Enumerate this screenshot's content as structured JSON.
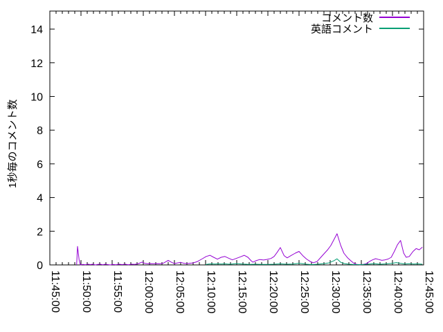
{
  "chart_data": {
    "type": "line",
    "title": "",
    "xlabel": "",
    "ylabel": "1秒毎のコメント数",
    "ylim": [
      0,
      15.07
    ],
    "yticks": [
      0,
      2,
      4,
      6,
      8,
      10,
      12,
      14
    ],
    "x_range_minutes": [
      0,
      60
    ],
    "x_major_tick_minutes": 5,
    "x_minor_tick_minutes": 1,
    "xtick_labels": [
      "11:45:00",
      "11:50:00",
      "11:55:00",
      "12:00:00",
      "12:05:00",
      "12:10:00",
      "12:15:00",
      "12:20:00",
      "12:25:00",
      "12:30:00",
      "12:35:00",
      "12:40:00",
      "12:45:00"
    ],
    "grid": false,
    "legend_position": "top-right-inside",
    "axis_color": "#000000",
    "background_color": "#ffffff",
    "series": [
      {
        "name": "コメント数",
        "color": "#9400d3",
        "points": [
          [
            4.3,
            0
          ],
          [
            4.45,
            1.1
          ],
          [
            4.7,
            0.3
          ],
          [
            4.9,
            0
          ],
          [
            5.3,
            0.03
          ],
          [
            5.7,
            0.01
          ],
          [
            6.1,
            0.04
          ],
          [
            6.5,
            0.02
          ],
          [
            6.9,
            0.04
          ],
          [
            7.3,
            0
          ],
          [
            7.7,
            0.03
          ],
          [
            8.1,
            0.04
          ],
          [
            8.5,
            0.01
          ],
          [
            8.9,
            0.04
          ],
          [
            9.3,
            0.02
          ],
          [
            9.7,
            0
          ],
          [
            10.1,
            0.03
          ],
          [
            10.6,
            0.01
          ],
          [
            11.1,
            0.04
          ],
          [
            11.6,
            0.02
          ],
          [
            12.1,
            0.04
          ],
          [
            12.6,
            0.01
          ],
          [
            13.1,
            0.04
          ],
          [
            13.6,
            0.03
          ],
          [
            14.1,
            0.06
          ],
          [
            14.5,
            0.12
          ],
          [
            14.8,
            0.17
          ],
          [
            15.2,
            0.1
          ],
          [
            15.7,
            0.07
          ],
          [
            16.2,
            0.08
          ],
          [
            16.7,
            0.07
          ],
          [
            17.2,
            0.08
          ],
          [
            17.7,
            0.07
          ],
          [
            18.2,
            0.1
          ],
          [
            18.6,
            0.18
          ],
          [
            19,
            0.27
          ],
          [
            19.5,
            0.16
          ],
          [
            20,
            0.08
          ],
          [
            20.5,
            0.12
          ],
          [
            21,
            0.15
          ],
          [
            21.5,
            0.1
          ],
          [
            22,
            0.08
          ],
          [
            22.5,
            0.1
          ],
          [
            23,
            0.12
          ],
          [
            23.7,
            0.2
          ],
          [
            24.4,
            0.35
          ],
          [
            25.1,
            0.5
          ],
          [
            25.7,
            0.57
          ],
          [
            26.3,
            0.45
          ],
          [
            26.9,
            0.34
          ],
          [
            27.5,
            0.45
          ],
          [
            28.1,
            0.5
          ],
          [
            28.7,
            0.4
          ],
          [
            29.3,
            0.3
          ],
          [
            29.9,
            0.38
          ],
          [
            30.6,
            0.48
          ],
          [
            31.2,
            0.57
          ],
          [
            31.8,
            0.45
          ],
          [
            32.3,
            0.25
          ],
          [
            32.6,
            0.16
          ],
          [
            33.1,
            0.25
          ],
          [
            33.7,
            0.32
          ],
          [
            34.3,
            0.29
          ],
          [
            34.9,
            0.33
          ],
          [
            35.5,
            0.38
          ],
          [
            36,
            0.5
          ],
          [
            36.5,
            0.75
          ],
          [
            37,
            1.03
          ],
          [
            37.6,
            0.55
          ],
          [
            38.1,
            0.42
          ],
          [
            38.7,
            0.55
          ],
          [
            39.4,
            0.7
          ],
          [
            40,
            0.8
          ],
          [
            40.6,
            0.55
          ],
          [
            41.2,
            0.35
          ],
          [
            41.8,
            0.2
          ],
          [
            42.3,
            0.13
          ],
          [
            42.9,
            0.2
          ],
          [
            43.5,
            0.45
          ],
          [
            44.1,
            0.7
          ],
          [
            44.6,
            0.9
          ],
          [
            45.1,
            1.15
          ],
          [
            45.6,
            1.5
          ],
          [
            46.1,
            1.85
          ],
          [
            46.7,
            1.15
          ],
          [
            47.2,
            0.7
          ],
          [
            47.8,
            0.42
          ],
          [
            48.3,
            0.25
          ],
          [
            48.8,
            0.1
          ],
          [
            49.3,
            0.03
          ],
          [
            49.8,
            0.01
          ],
          [
            50.3,
            0.03
          ],
          [
            50.8,
            0.07
          ],
          [
            51.3,
            0.2
          ],
          [
            51.8,
            0.3
          ],
          [
            52.3,
            0.37
          ],
          [
            52.8,
            0.32
          ],
          [
            53.3,
            0.27
          ],
          [
            53.8,
            0.3
          ],
          [
            54.3,
            0.35
          ],
          [
            54.8,
            0.45
          ],
          [
            55.3,
            0.8
          ],
          [
            55.8,
            1.2
          ],
          [
            56.3,
            1.45
          ],
          [
            56.8,
            0.7
          ],
          [
            57.2,
            0.45
          ],
          [
            57.7,
            0.5
          ],
          [
            58.3,
            0.8
          ],
          [
            58.8,
            0.97
          ],
          [
            59.3,
            0.9
          ],
          [
            59.8,
            1.05
          ]
        ]
      },
      {
        "name": "英語コメント",
        "color": "#009e73",
        "points": [
          [
            25,
            0.02
          ],
          [
            25.5,
            0.05
          ],
          [
            26,
            0.06
          ],
          [
            26.5,
            0.05
          ],
          [
            27,
            0.06
          ],
          [
            27.5,
            0.05
          ],
          [
            28,
            0.06
          ],
          [
            28.5,
            0.05
          ],
          [
            29,
            0.04
          ],
          [
            29.5,
            0.06
          ],
          [
            30,
            0.08
          ],
          [
            30.5,
            0.06
          ],
          [
            31,
            0.05
          ],
          [
            31.5,
            0.04
          ],
          [
            32,
            0.03
          ],
          [
            33,
            0.04
          ],
          [
            34,
            0.03
          ],
          [
            35,
            0.03
          ],
          [
            36,
            0.04
          ],
          [
            37,
            0.06
          ],
          [
            38,
            0.04
          ],
          [
            39,
            0.05
          ],
          [
            40,
            0.1
          ],
          [
            40.6,
            0.07
          ],
          [
            41.2,
            0.04
          ],
          [
            42,
            0.02
          ],
          [
            43,
            0.04
          ],
          [
            44,
            0.08
          ],
          [
            44.8,
            0.12
          ],
          [
            45.6,
            0.25
          ],
          [
            46.1,
            0.36
          ],
          [
            46.7,
            0.15
          ],
          [
            47.3,
            0.08
          ],
          [
            48,
            0.04
          ],
          [
            49,
            0.02
          ],
          [
            50,
            0.02
          ],
          [
            51,
            0.04
          ],
          [
            52,
            0.07
          ],
          [
            53,
            0.04
          ],
          [
            54,
            0.06
          ],
          [
            55,
            0.1
          ],
          [
            55.6,
            0.14
          ],
          [
            56.2,
            0.1
          ],
          [
            57,
            0.05
          ],
          [
            57.7,
            0.07
          ],
          [
            58.4,
            0.05
          ],
          [
            59,
            0.06
          ],
          [
            59.8,
            0.04
          ]
        ]
      }
    ]
  }
}
